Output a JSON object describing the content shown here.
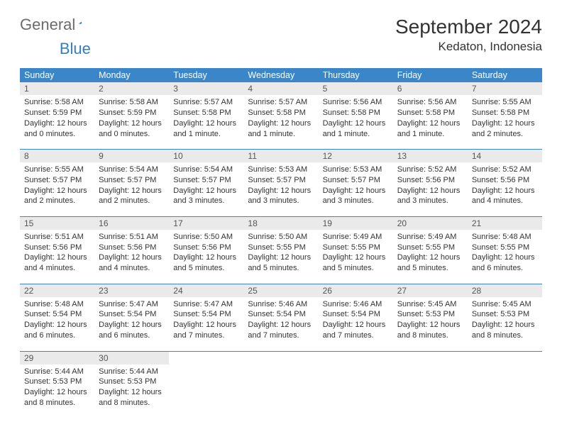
{
  "logo": {
    "part1": "General",
    "part2": "Blue"
  },
  "title": "September 2024",
  "location": "Kedaton, Indonesia",
  "colors": {
    "header_bg": "#3a86c8",
    "header_text": "#ffffff",
    "daynum_bg": "#eaeaea",
    "daynum_text": "#555555",
    "body_text": "#333333",
    "border": "#3a86c8",
    "logo_gray": "#6b6b6b",
    "logo_blue": "#2f7fc3",
    "page_bg": "#ffffff"
  },
  "typography": {
    "title_fontsize": 28,
    "location_fontsize": 17,
    "dayheader_fontsize": 12.5,
    "daynum_fontsize": 12,
    "body_fontsize": 11
  },
  "day_names": [
    "Sunday",
    "Monday",
    "Tuesday",
    "Wednesday",
    "Thursday",
    "Friday",
    "Saturday"
  ],
  "weeks": [
    [
      {
        "n": "1",
        "sr": "Sunrise: 5:58 AM",
        "ss": "Sunset: 5:59 PM",
        "dl1": "Daylight: 12 hours",
        "dl2": "and 0 minutes."
      },
      {
        "n": "2",
        "sr": "Sunrise: 5:58 AM",
        "ss": "Sunset: 5:59 PM",
        "dl1": "Daylight: 12 hours",
        "dl2": "and 0 minutes."
      },
      {
        "n": "3",
        "sr": "Sunrise: 5:57 AM",
        "ss": "Sunset: 5:58 PM",
        "dl1": "Daylight: 12 hours",
        "dl2": "and 1 minute."
      },
      {
        "n": "4",
        "sr": "Sunrise: 5:57 AM",
        "ss": "Sunset: 5:58 PM",
        "dl1": "Daylight: 12 hours",
        "dl2": "and 1 minute."
      },
      {
        "n": "5",
        "sr": "Sunrise: 5:56 AM",
        "ss": "Sunset: 5:58 PM",
        "dl1": "Daylight: 12 hours",
        "dl2": "and 1 minute."
      },
      {
        "n": "6",
        "sr": "Sunrise: 5:56 AM",
        "ss": "Sunset: 5:58 PM",
        "dl1": "Daylight: 12 hours",
        "dl2": "and 1 minute."
      },
      {
        "n": "7",
        "sr": "Sunrise: 5:55 AM",
        "ss": "Sunset: 5:58 PM",
        "dl1": "Daylight: 12 hours",
        "dl2": "and 2 minutes."
      }
    ],
    [
      {
        "n": "8",
        "sr": "Sunrise: 5:55 AM",
        "ss": "Sunset: 5:57 PM",
        "dl1": "Daylight: 12 hours",
        "dl2": "and 2 minutes."
      },
      {
        "n": "9",
        "sr": "Sunrise: 5:54 AM",
        "ss": "Sunset: 5:57 PM",
        "dl1": "Daylight: 12 hours",
        "dl2": "and 2 minutes."
      },
      {
        "n": "10",
        "sr": "Sunrise: 5:54 AM",
        "ss": "Sunset: 5:57 PM",
        "dl1": "Daylight: 12 hours",
        "dl2": "and 3 minutes."
      },
      {
        "n": "11",
        "sr": "Sunrise: 5:53 AM",
        "ss": "Sunset: 5:57 PM",
        "dl1": "Daylight: 12 hours",
        "dl2": "and 3 minutes."
      },
      {
        "n": "12",
        "sr": "Sunrise: 5:53 AM",
        "ss": "Sunset: 5:57 PM",
        "dl1": "Daylight: 12 hours",
        "dl2": "and 3 minutes."
      },
      {
        "n": "13",
        "sr": "Sunrise: 5:52 AM",
        "ss": "Sunset: 5:56 PM",
        "dl1": "Daylight: 12 hours",
        "dl2": "and 3 minutes."
      },
      {
        "n": "14",
        "sr": "Sunrise: 5:52 AM",
        "ss": "Sunset: 5:56 PM",
        "dl1": "Daylight: 12 hours",
        "dl2": "and 4 minutes."
      }
    ],
    [
      {
        "n": "15",
        "sr": "Sunrise: 5:51 AM",
        "ss": "Sunset: 5:56 PM",
        "dl1": "Daylight: 12 hours",
        "dl2": "and 4 minutes."
      },
      {
        "n": "16",
        "sr": "Sunrise: 5:51 AM",
        "ss": "Sunset: 5:56 PM",
        "dl1": "Daylight: 12 hours",
        "dl2": "and 4 minutes."
      },
      {
        "n": "17",
        "sr": "Sunrise: 5:50 AM",
        "ss": "Sunset: 5:56 PM",
        "dl1": "Daylight: 12 hours",
        "dl2": "and 5 minutes."
      },
      {
        "n": "18",
        "sr": "Sunrise: 5:50 AM",
        "ss": "Sunset: 5:55 PM",
        "dl1": "Daylight: 12 hours",
        "dl2": "and 5 minutes."
      },
      {
        "n": "19",
        "sr": "Sunrise: 5:49 AM",
        "ss": "Sunset: 5:55 PM",
        "dl1": "Daylight: 12 hours",
        "dl2": "and 5 minutes."
      },
      {
        "n": "20",
        "sr": "Sunrise: 5:49 AM",
        "ss": "Sunset: 5:55 PM",
        "dl1": "Daylight: 12 hours",
        "dl2": "and 5 minutes."
      },
      {
        "n": "21",
        "sr": "Sunrise: 5:48 AM",
        "ss": "Sunset: 5:55 PM",
        "dl1": "Daylight: 12 hours",
        "dl2": "and 6 minutes."
      }
    ],
    [
      {
        "n": "22",
        "sr": "Sunrise: 5:48 AM",
        "ss": "Sunset: 5:54 PM",
        "dl1": "Daylight: 12 hours",
        "dl2": "and 6 minutes."
      },
      {
        "n": "23",
        "sr": "Sunrise: 5:47 AM",
        "ss": "Sunset: 5:54 PM",
        "dl1": "Daylight: 12 hours",
        "dl2": "and 6 minutes."
      },
      {
        "n": "24",
        "sr": "Sunrise: 5:47 AM",
        "ss": "Sunset: 5:54 PM",
        "dl1": "Daylight: 12 hours",
        "dl2": "and 7 minutes."
      },
      {
        "n": "25",
        "sr": "Sunrise: 5:46 AM",
        "ss": "Sunset: 5:54 PM",
        "dl1": "Daylight: 12 hours",
        "dl2": "and 7 minutes."
      },
      {
        "n": "26",
        "sr": "Sunrise: 5:46 AM",
        "ss": "Sunset: 5:54 PM",
        "dl1": "Daylight: 12 hours",
        "dl2": "and 7 minutes."
      },
      {
        "n": "27",
        "sr": "Sunrise: 5:45 AM",
        "ss": "Sunset: 5:53 PM",
        "dl1": "Daylight: 12 hours",
        "dl2": "and 8 minutes."
      },
      {
        "n": "28",
        "sr": "Sunrise: 5:45 AM",
        "ss": "Sunset: 5:53 PM",
        "dl1": "Daylight: 12 hours",
        "dl2": "and 8 minutes."
      }
    ],
    [
      {
        "n": "29",
        "sr": "Sunrise: 5:44 AM",
        "ss": "Sunset: 5:53 PM",
        "dl1": "Daylight: 12 hours",
        "dl2": "and 8 minutes."
      },
      {
        "n": "30",
        "sr": "Sunrise: 5:44 AM",
        "ss": "Sunset: 5:53 PM",
        "dl1": "Daylight: 12 hours",
        "dl2": "and 8 minutes."
      },
      null,
      null,
      null,
      null,
      null
    ]
  ]
}
